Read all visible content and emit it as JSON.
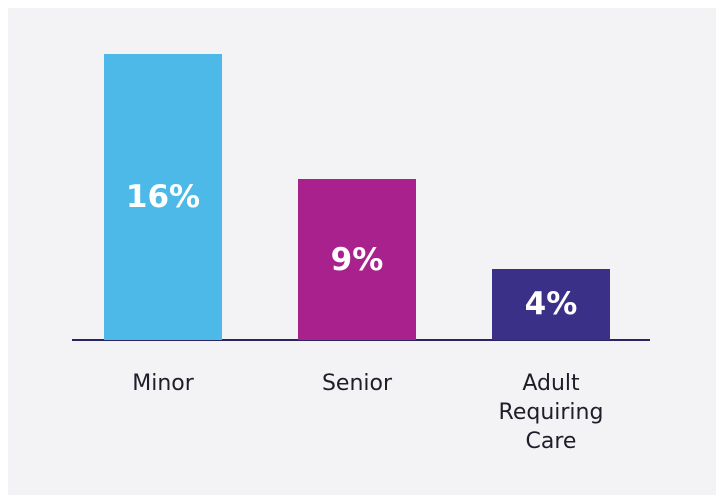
{
  "chart_data": {
    "type": "bar",
    "categories": [
      "Minor",
      "Senior",
      "Adult Requiring Care"
    ],
    "values": [
      16,
      9,
      4
    ],
    "value_labels": [
      "16%",
      "9%",
      "4%"
    ],
    "colors": [
      "#4db9e9",
      "#a8218d",
      "#3a3088"
    ]
  }
}
